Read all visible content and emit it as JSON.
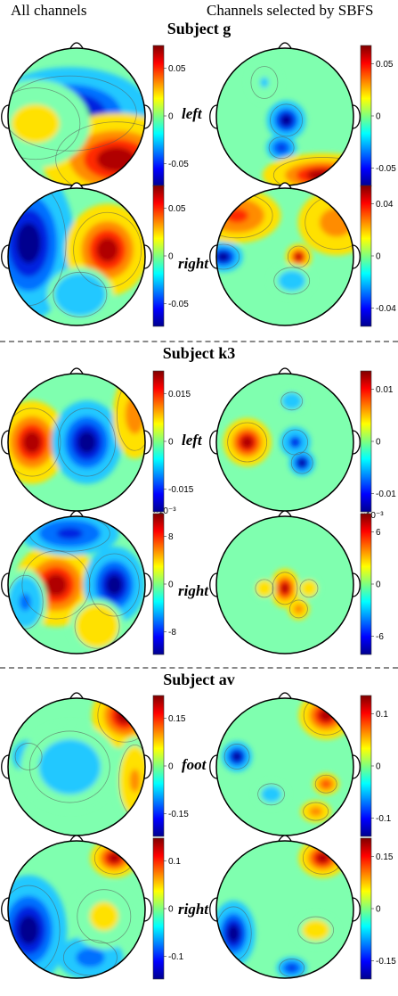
{
  "headers": {
    "left": "All channels",
    "right": "Channels selected by SBFS"
  },
  "subjects": [
    {
      "title": "Subject g",
      "rows": [
        {
          "condition": "left",
          "all": {
            "ticks": [
              "0.05",
              "0",
              "-0.05"
            ],
            "blobs": [
              [
                -0.1,
                -0.05,
                -1,
                0.75,
                0.42
              ],
              [
                0.58,
                0.62,
                1,
                0.68,
                0.42
              ],
              [
                -0.6,
                0.1,
                0.2,
                0.5,
                0.4
              ]
            ]
          },
          "sbfs": {
            "ticks": [
              "0.05",
              "0",
              "-0.05"
            ],
            "blobs": [
              [
                0.02,
                0.05,
                -0.9,
                0.18,
                0.18
              ],
              [
                -0.05,
                0.45,
                -0.8,
                0.14,
                0.12
              ],
              [
                0.55,
                0.85,
                0.9,
                0.55,
                0.2
              ],
              [
                -0.3,
                -0.5,
                -0.15,
                0.15,
                0.18
              ]
            ]
          }
        },
        {
          "condition": "right",
          "all": {
            "ticks": [
              "0.05",
              "0",
              "-0.05"
            ],
            "blobs": [
              [
                -0.7,
                -0.2,
                -1,
                0.42,
                0.7
              ],
              [
                0.45,
                -0.1,
                1,
                0.38,
                0.42
              ],
              [
                0.05,
                0.55,
                -0.4,
                0.3,
                0.25
              ]
            ]
          },
          "sbfs": {
            "ticks": [
              "0.04",
              "0",
              "-0.04"
            ],
            "blobs": [
              [
                -0.9,
                0.0,
                -1,
                0.18,
                0.14
              ],
              [
                0.2,
                0.0,
                1,
                0.12,
                0.12
              ],
              [
                -0.7,
                -0.6,
                0.8,
                0.4,
                0.25
              ],
              [
                0.75,
                -0.5,
                0.6,
                0.35,
                0.3
              ],
              [
                0.1,
                0.35,
                -0.25,
                0.2,
                0.15
              ]
            ]
          }
        }
      ]
    },
    {
      "title": "Subject k3",
      "rows": [
        {
          "condition": "left",
          "all": {
            "ticks": [
              "0.015",
              "0",
              "-0.015"
            ],
            "blobs": [
              [
                -0.65,
                0.0,
                1,
                0.32,
                0.38
              ],
              [
                0.15,
                0.0,
                -1,
                0.32,
                0.38
              ],
              [
                0.85,
                -0.4,
                0.6,
                0.2,
                0.4
              ]
            ]
          },
          "sbfs": {
            "ticks": [
              "0.01",
              "0",
              "-0.01"
            ],
            "blobs": [
              [
                -0.55,
                0.0,
                1,
                0.22,
                0.22
              ],
              [
                0.15,
                0.0,
                -0.7,
                0.14,
                0.14
              ],
              [
                0.25,
                0.3,
                -1,
                0.12,
                0.12
              ],
              [
                0.1,
                -0.6,
                -0.4,
                0.12,
                0.1
              ]
            ]
          }
        },
        {
          "condition": "right",
          "all": {
            "ticks": [
              "8",
              "0",
              "-8"
            ],
            "blobs": [
              [
                -0.3,
                0.0,
                1,
                0.38,
                0.38
              ],
              [
                0.55,
                0.0,
                -1,
                0.28,
                0.35
              ],
              [
                -0.1,
                -0.75,
                -0.8,
                0.45,
                0.2
              ],
              [
                0.3,
                0.6,
                0.4,
                0.25,
                0.25
              ],
              [
                -0.75,
                0.25,
                -0.5,
                0.2,
                0.3
              ]
            ]
          },
          "sbfs": {
            "ticks": [
              "6",
              "0",
              "-6"
            ],
            "blobs": [
              [
                0.0,
                0.05,
                1,
                0.14,
                0.18
              ],
              [
                0.2,
                0.35,
                0.6,
                0.1,
                0.1
              ],
              [
                -0.3,
                0.05,
                0.35,
                0.1,
                0.1
              ],
              [
                0.35,
                0.05,
                0.35,
                0.1,
                0.1
              ]
            ]
          }
        }
      ]
    },
    {
      "title": "Subject av",
      "rows": [
        {
          "condition": "foot",
          "all": {
            "ticks": [
              "0.15",
              "0",
              "-0.15"
            ],
            "blobs": [
              [
                0.7,
                -0.75,
                1,
                0.3,
                0.3
              ],
              [
                -0.7,
                -0.15,
                -0.7,
                0.15,
                0.15
              ],
              [
                0.85,
                0.2,
                0.5,
                0.18,
                0.4
              ],
              [
                -0.1,
                0.0,
                -0.25,
                0.45,
                0.4
              ]
            ]
          },
          "sbfs": {
            "ticks": [
              "0.1",
              "0",
              "-0.1"
            ],
            "blobs": [
              [
                0.6,
                -0.75,
                1,
                0.25,
                0.22
              ],
              [
                -0.7,
                -0.15,
                -0.9,
                0.14,
                0.14
              ],
              [
                0.6,
                0.25,
                0.8,
                0.12,
                0.1
              ],
              [
                0.45,
                0.65,
                0.6,
                0.14,
                0.1
              ],
              [
                -0.2,
                0.4,
                -0.3,
                0.15,
                0.12
              ]
            ]
          }
        },
        {
          "condition": "right",
          "all": {
            "ticks": [
              "0.1",
              "0",
              "-0.1"
            ],
            "blobs": [
              [
                0.55,
                -0.75,
                1,
                0.22,
                0.18
              ],
              [
                -0.7,
                0.3,
                -0.9,
                0.35,
                0.5
              ],
              [
                0.2,
                0.7,
                -0.6,
                0.3,
                0.2
              ],
              [
                0.4,
                0.1,
                0.2,
                0.3,
                0.3
              ]
            ]
          },
          "sbfs": {
            "ticks": [
              "0.15",
              "0",
              "-0.15"
            ],
            "blobs": [
              [
                0.55,
                -0.75,
                1,
                0.22,
                0.18
              ],
              [
                -0.75,
                0.35,
                -0.9,
                0.2,
                0.3
              ],
              [
                0.1,
                0.85,
                -0.8,
                0.14,
                0.1
              ],
              [
                0.45,
                0.3,
                0.3,
                0.2,
                0.15
              ]
            ]
          }
        }
      ]
    }
  ],
  "exponents": [
    "×10⁻³",
    "×10⁻³"
  ]
}
